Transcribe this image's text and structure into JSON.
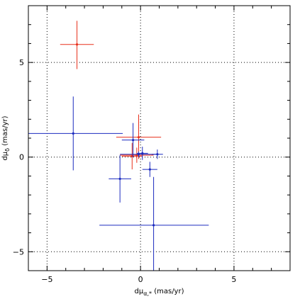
{
  "chart_data": {
    "type": "scatter",
    "title": "",
    "xlabel": "dμ_{α,*} (mas/yr)",
    "ylabel": "dμ_δ (mas/yr)",
    "xlim": [
      -6,
      8
    ],
    "ylim": [
      -6,
      8
    ],
    "x_ticks": [
      -5,
      0,
      5
    ],
    "y_ticks": [
      -5,
      0,
      5
    ],
    "x_tick_labels": [
      "−5",
      "0",
      "5"
    ],
    "y_tick_labels": [
      "−5",
      "0",
      "5"
    ],
    "grid": true,
    "grid_style": "dotted",
    "legend": "none",
    "series": [
      {
        "color": "#e8301c",
        "points": [
          {
            "x": -3.4,
            "y": 5.95,
            "xerr": 0.9,
            "yerr_low": 1.3,
            "yerr_high": 1.25
          },
          {
            "x": -0.1,
            "y": 1.05,
            "xerr": 1.2,
            "yerr_low": 1.15,
            "yerr_high": 1.2
          },
          {
            "x": -0.2,
            "y": 0.1,
            "xerr": 0.9,
            "yerr_low": 0.4,
            "yerr_high": 0.4
          },
          {
            "x": -0.45,
            "y": 0.05,
            "xerr": 0.55,
            "yerr_low": 0.7,
            "yerr_high": 0.7
          }
        ]
      },
      {
        "color": "#1c2bbf",
        "points": [
          {
            "x": -3.6,
            "y": 1.25,
            "xerr_low": 2.4,
            "xerr_high": 2.65,
            "yerr_low": 1.95,
            "yerr_high": 1.95
          },
          {
            "x": -1.1,
            "y": -1.15,
            "xerr": 0.6,
            "yerr_low": 1.25,
            "yerr_high": 1.25
          },
          {
            "x": -0.4,
            "y": 0.9,
            "xerr": 0.6,
            "yerr_low": 0.9,
            "yerr_high": 0.9
          },
          {
            "x": -0.1,
            "y": 0.15,
            "xerr": 1.0,
            "yerr_low": 0.15,
            "yerr_high": 0.15
          },
          {
            "x": 0.1,
            "y": 0.2,
            "xerr": 0.3,
            "yerr_low": 0.35,
            "yerr_high": 0.35
          },
          {
            "x": 0.9,
            "y": 0.15,
            "xerr": 0.3,
            "yerr_low": 0.25,
            "yerr_high": 0.25
          },
          {
            "x": 0.5,
            "y": -0.65,
            "xerr": 0.4,
            "yerr_low": 0.4,
            "yerr_high": 0.4
          },
          {
            "x": 0.7,
            "y": -3.6,
            "xerr_low": 2.9,
            "xerr_high": 2.95,
            "yerr_low": 2.5,
            "yerr_high": 2.55
          }
        ]
      }
    ]
  }
}
